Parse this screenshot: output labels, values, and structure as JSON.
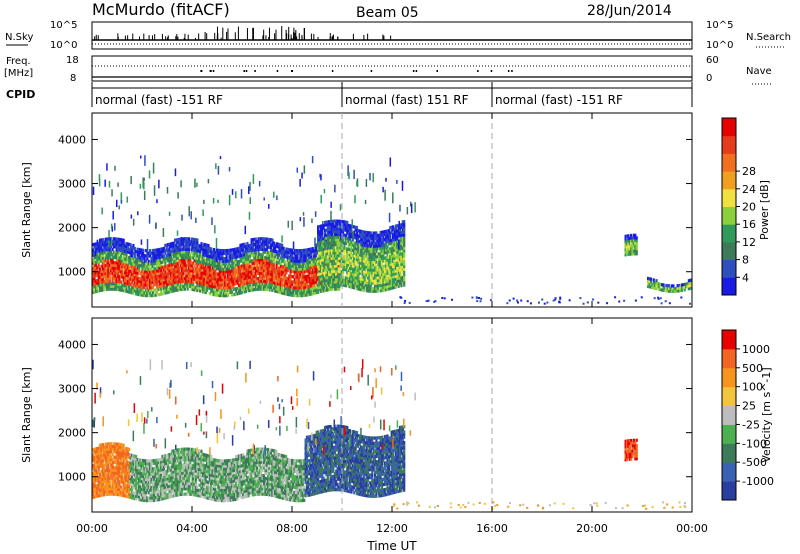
{
  "header": {
    "station": "McMurdo (fitACF)",
    "beam": "Beam 05",
    "date": "28/Jun/2014"
  },
  "strip_labels": {
    "nsky": "N.Sky",
    "freq_line1": "Freq.",
    "freq_line2": "[MHz]",
    "cpid": "CPID",
    "nsearch": "N.Search",
    "nave": "Nave",
    "noise_tick_hi": "10^5",
    "noise_tick_lo": "10^0",
    "freq_tick_hi": "18",
    "freq_tick_lo": "8",
    "nave_tick_hi": "60",
    "nave_tick_lo": "0"
  },
  "cpid_segments": [
    {
      "label": "normal (fast) -151 RF",
      "start_h": 0,
      "end_h": 10
    },
    {
      "label": "normal (fast) 151 RF",
      "start_h": 10,
      "end_h": 16
    },
    {
      "label": "normal (fast) -151 RF",
      "start_h": 16,
      "end_h": 24
    }
  ],
  "chart_data": [
    {
      "type": "heatmap",
      "panel": "power",
      "xlabel": "Time UT",
      "ylabel": "Slant Range [km]",
      "xlim": [
        0,
        24
      ],
      "ylim": [
        200,
        4600
      ],
      "yticks": [
        1000,
        2000,
        3000,
        4000
      ],
      "colorbar": {
        "label": "Power [dB]",
        "ticks": [
          "4",
          "8",
          "12",
          "16",
          "20",
          "24",
          "28"
        ],
        "colors": [
          "#1a1ae6",
          "#2f4fbf",
          "#3d7a5a",
          "#2f9a5a",
          "#8cd13c",
          "#f0e040",
          "#f0a020",
          "#f07020",
          "#e63c1e",
          "#e60000"
        ]
      },
      "echo_regions": [
        {
          "t0": 0.0,
          "t1": 9.9,
          "r0": 500,
          "r1": 1600,
          "core_db": 24
        },
        {
          "t0": 9.0,
          "t1": 12.5,
          "r0": 600,
          "r1": 2000,
          "core_db": 14
        },
        {
          "t0": 21.3,
          "t1": 21.8,
          "r0": 1300,
          "r1": 1700,
          "core_db": 12
        },
        {
          "t0": 22.2,
          "t1": 24.0,
          "r0": 600,
          "r1": 800,
          "core_db": 6
        }
      ]
    },
    {
      "type": "heatmap",
      "panel": "velocity",
      "xlabel": "Time UT",
      "ylabel": "Slant Range [km]",
      "xlim": [
        0,
        24
      ],
      "ylim": [
        200,
        4600
      ],
      "yticks": [
        1000,
        2000,
        3000,
        4000
      ],
      "colorbar": {
        "label": "Velocity [m s^-1]",
        "ticks": [
          "1000",
          "500",
          "100",
          "25",
          "-25",
          "-100",
          "-500",
          "-1000"
        ],
        "colors": [
          "#2a3ea0",
          "#3a62b4",
          "#3d7a5a",
          "#4caf50",
          "#bdbdbd",
          "#f2c53d",
          "#f7941d",
          "#f26522",
          "#e60000"
        ]
      },
      "echo_regions": [
        {
          "t0": 0.0,
          "t1": 1.5,
          "r0": 500,
          "r1": 1600,
          "core": "orange"
        },
        {
          "t0": 1.5,
          "t1": 8.5,
          "r0": 500,
          "r1": 1500,
          "core": "green"
        },
        {
          "t0": 8.5,
          "t1": 12.5,
          "r0": 600,
          "r1": 2000,
          "core": "blue-green"
        },
        {
          "t0": 21.3,
          "t1": 21.8,
          "r0": 1300,
          "r1": 1700,
          "core": "red"
        }
      ]
    }
  ],
  "time_ticks": [
    "00:00",
    "04:00",
    "08:00",
    "12:00",
    "16:00",
    "20:00",
    "00:00"
  ],
  "x_axis_label": "Time UT"
}
